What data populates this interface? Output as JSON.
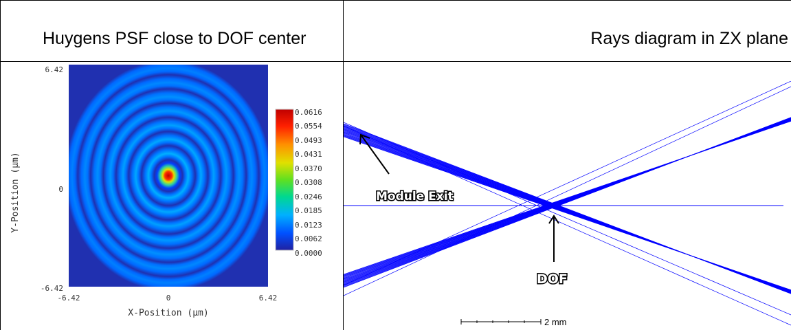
{
  "table": {
    "left_header": "Huygens PSF close to DOF center",
    "right_header": "Rays diagram in ZX plane"
  },
  "psf_plot": {
    "y_ticks": [
      "6.42",
      "0",
      "-6.42"
    ],
    "x_ticks": [
      "-6.42",
      "0",
      "6.42"
    ],
    "xlabel": "X-Position (µm)",
    "ylabel": "Y-Position (µm)",
    "colorbar_ticks": [
      "0.0616",
      "0.0554",
      "0.0493",
      "0.0431",
      "0.0370",
      "0.0308",
      "0.0246",
      "0.0185",
      "0.0123",
      "0.0062",
      "0.0000"
    ],
    "peak_value": 0.0616,
    "colormap": [
      "#2020a0",
      "#0050ff",
      "#00b0ff",
      "#00d890",
      "#60e020",
      "#e0e000",
      "#ff9000",
      "#ff2000",
      "#c00000"
    ]
  },
  "ray_diagram": {
    "labels": {
      "module_exit": "Module Exit",
      "dof": "DOF",
      "scale": "2 mm"
    },
    "ray_color": "#0000ff"
  }
}
